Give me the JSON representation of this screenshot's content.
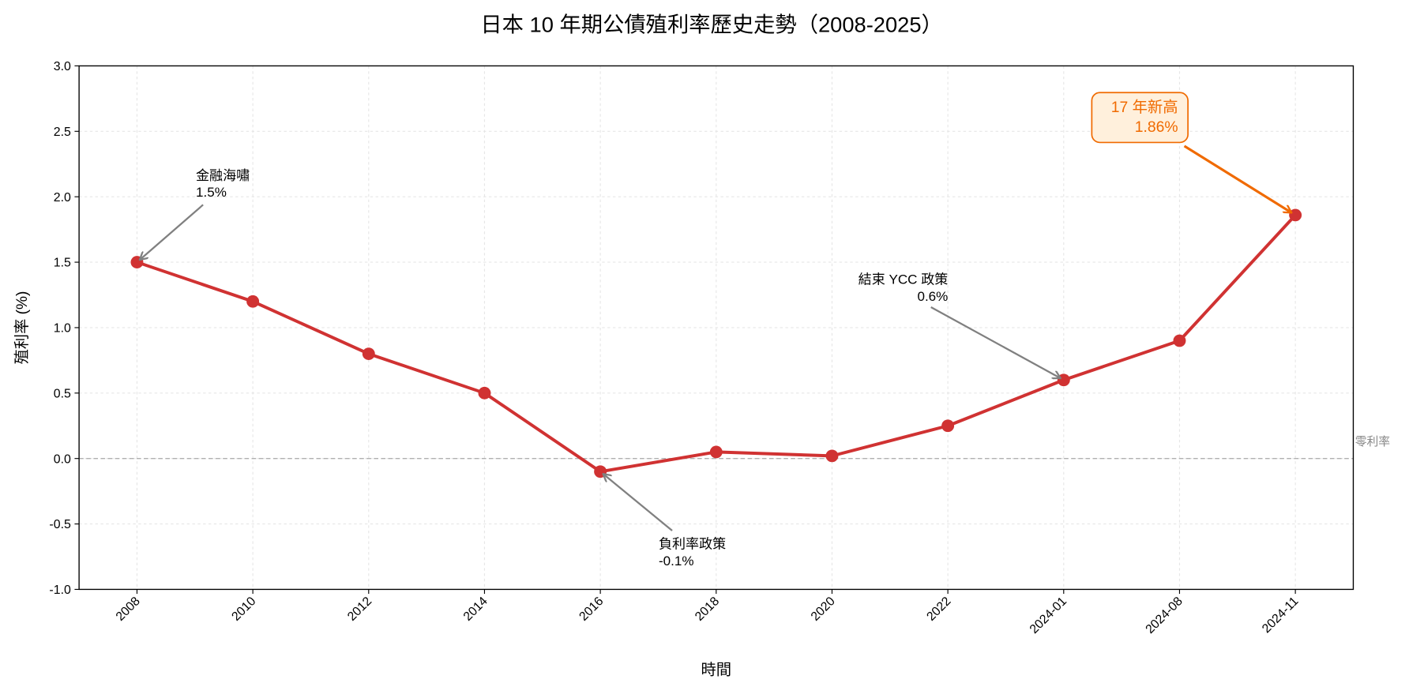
{
  "chart_data": {
    "type": "line",
    "title": "日本 10 年期公債殖利率歷史走勢（2008-2025）",
    "xlabel": "時間",
    "ylabel": "殖利率 (%)",
    "ylim": [
      -1.0,
      3.0
    ],
    "yticks": [
      "-1.0",
      "-0.5",
      "0.0",
      "0.5",
      "1.0",
      "1.5",
      "2.0",
      "2.5",
      "3.0"
    ],
    "ytick_values": [
      -1.0,
      -0.5,
      0.0,
      0.5,
      1.0,
      1.5,
      2.0,
      2.5,
      3.0
    ],
    "grid": true,
    "categories": [
      "2008",
      "2010",
      "2012",
      "2014",
      "2016",
      "2018",
      "2020",
      "2022",
      "2024-01",
      "2024-08",
      "2024-11"
    ],
    "series": [
      {
        "values": [
          1.5,
          1.2,
          0.8,
          0.5,
          -0.1,
          0.05,
          0.02,
          0.25,
          0.6,
          0.9,
          1.86
        ],
        "color": "#d03232"
      }
    ],
    "reference_line": {
      "y": 0.0,
      "label": "零利率",
      "color": "#aaaaaa"
    },
    "annotations": [
      {
        "index": 0,
        "line1": "金融海嘯",
        "line2": "1.5%",
        "color": "#808080"
      },
      {
        "index": 4,
        "line1": "負利率政策",
        "line2": "-0.1%",
        "color": "#808080"
      },
      {
        "index": 8,
        "line1": "結束 YCC 政策",
        "line2": "0.6%",
        "color": "#808080"
      },
      {
        "index": 10,
        "line1": "17 年新高",
        "line2": "1.86%",
        "color": "#f06a00",
        "box_fill": "#fff0dc"
      }
    ]
  }
}
